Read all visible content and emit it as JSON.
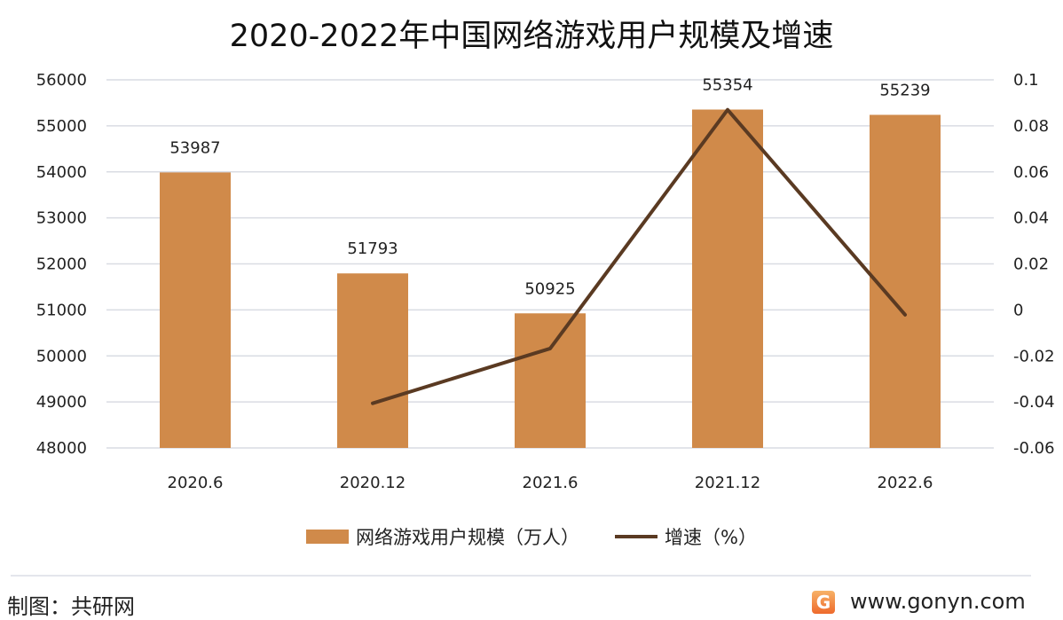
{
  "chart_data": {
    "type": "bar+line",
    "title": "2020-2022年中国网络游戏用户规模及增速",
    "categories": [
      "2020.6",
      "2020.12",
      "2021.6",
      "2021.12",
      "2022.6"
    ],
    "series": [
      {
        "name": "网络游戏用户规模（万人）",
        "type": "bar",
        "axis": "left",
        "values": [
          53987,
          51793,
          50925,
          55354,
          55239
        ],
        "color": "#D08A4A"
      },
      {
        "name": "增速（%）",
        "type": "line",
        "axis": "right",
        "values": [
          null,
          -0.0406,
          -0.0168,
          0.087,
          -0.0021
        ],
        "color": "#5A3A22"
      }
    ],
    "left_axis": {
      "ylim": [
        48000,
        56000
      ],
      "ticks": [
        "48000",
        "49000",
        "50000",
        "51000",
        "52000",
        "53000",
        "54000",
        "55000",
        "56000"
      ]
    },
    "right_axis": {
      "ylim": [
        -0.06,
        0.1
      ],
      "ticks": [
        "-0.06",
        "-0.04",
        "-0.02",
        "0",
        "0.02",
        "0.04",
        "0.06",
        "0.08",
        "0.1"
      ]
    },
    "grid": true,
    "legend": "bottom"
  },
  "footer": {
    "credit": "制图：共研网",
    "site": "www.gonyn.com",
    "logo_letter": "G"
  }
}
